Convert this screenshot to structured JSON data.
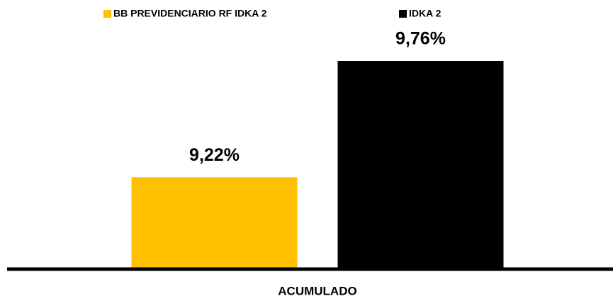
{
  "chart_data": {
    "type": "bar",
    "categories": [
      "ACUMULADO"
    ],
    "series": [
      {
        "name": "BB PREVIDENCIARIO RF IDKA 2",
        "color": "#ffc000",
        "values": [
          9.22
        ],
        "value_labels": [
          "9,22%"
        ]
      },
      {
        "name": "IDKA 2",
        "color": "#000000",
        "values": [
          9.76
        ],
        "value_labels": [
          "9,76%"
        ]
      }
    ],
    "ylim": [
      8.8,
      10
    ],
    "legend": "top"
  }
}
